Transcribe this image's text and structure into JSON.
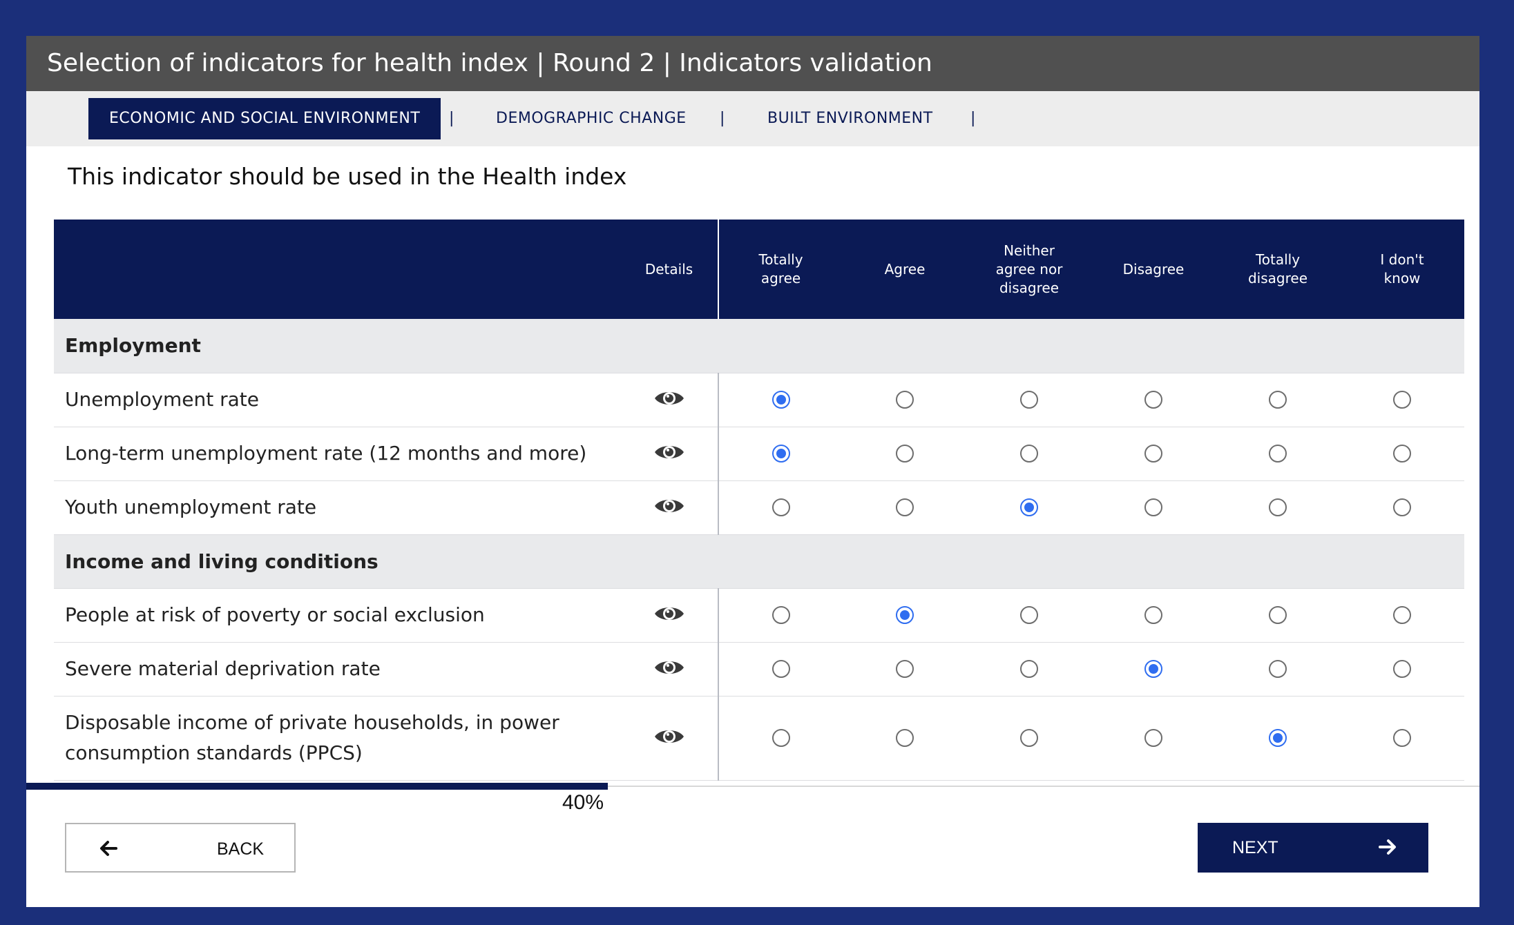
{
  "window": {
    "title": "Selection of indicators for health index | Round 2 | Indicators validation"
  },
  "tabs": [
    {
      "label": "ECONOMIC AND SOCIAL ENVIRONMENT",
      "active": true
    },
    {
      "label": "DEMOGRAPHIC CHANGE",
      "active": false
    },
    {
      "label": "BUILT ENVIRONMENT",
      "active": false
    }
  ],
  "tab_separator": "|",
  "question": "This indicator should be used in the Health index",
  "table": {
    "headers": {
      "details": "Details",
      "options": [
        "Totally agree",
        "Agree",
        "Neither agree nor disagree",
        "Disagree",
        "Totally disagree",
        "I don't know"
      ]
    },
    "groups": [
      {
        "title": "Employment",
        "rows": [
          {
            "label": "Unemployment rate",
            "selected": 0
          },
          {
            "label": "Long-term unemployment rate (12 months and more)",
            "selected": 0
          },
          {
            "label": "Youth unemployment rate",
            "selected": 2
          }
        ]
      },
      {
        "title": "Income and living conditions",
        "rows": [
          {
            "label": "People at risk of poverty or social exclusion",
            "selected": 1
          },
          {
            "label": "Severe material deprivation rate",
            "selected": 3
          },
          {
            "label": "Disposable income of private households, in power consumption standards (PPCS)",
            "selected": 4
          }
        ]
      }
    ]
  },
  "progress": {
    "value": 0.4,
    "label": "40%"
  },
  "buttons": {
    "back": "BACK",
    "next": "NEXT"
  },
  "icons": {
    "details": "eye-icon",
    "back": "arrow-left-icon",
    "next": "arrow-right-icon"
  },
  "colors": {
    "navy": "#0b1a55",
    "title_bar": "#505050",
    "frame": "#1b2f7a",
    "radio_selected": "#2f6df0"
  }
}
